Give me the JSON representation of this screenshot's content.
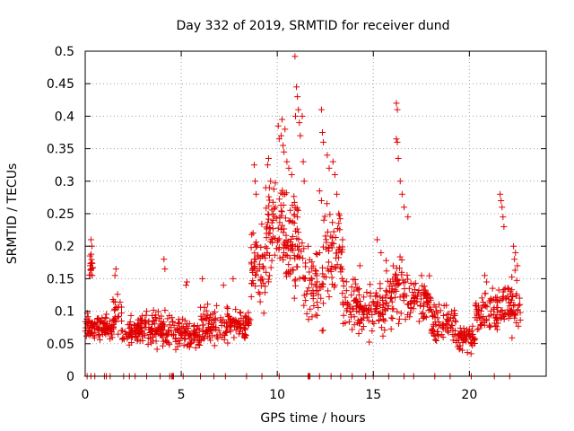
{
  "chart_data": {
    "type": "scatter",
    "title": "Day 332 of 2019, SRMTID for receiver dund",
    "xlabel": "GPS time / hours",
    "ylabel": "SRMTID / TECUs",
    "xlim": [
      0,
      24
    ],
    "ylim": [
      0,
      0.5
    ],
    "xticks": [
      0,
      5,
      10,
      15,
      20
    ],
    "xtick_labels": [
      "0",
      "5",
      "10",
      "15",
      "20"
    ],
    "yticks": [
      0,
      0.05,
      0.1,
      0.15,
      0.2,
      0.25,
      0.3,
      0.35,
      0.4,
      0.45,
      0.5
    ],
    "ytick_labels": [
      "0",
      "0.05",
      "0.1",
      "0.15",
      "0.2",
      "0.25",
      "0.3",
      "0.35",
      "0.4",
      "0.45",
      "0.5"
    ],
    "grid": true,
    "marker": "plus",
    "color": "#e00000",
    "series": [
      {
        "name": "SRMTID",
        "segments": [
          {
            "x0": 0.0,
            "x1": 0.4,
            "base": 0.075,
            "spread": 0.035,
            "count": 30,
            "min": 0.03
          },
          {
            "x0": 0.2,
            "x1": 0.4,
            "base": 0.17,
            "spread": 0.04,
            "count": 14,
            "min": 0.12
          },
          {
            "x0": 0.4,
            "x1": 1.5,
            "base": 0.075,
            "spread": 0.03,
            "count": 70,
            "min": 0.04
          },
          {
            "x0": 1.4,
            "x1": 1.9,
            "base": 0.1,
            "spread": 0.05,
            "count": 24,
            "min": 0.05
          },
          {
            "x0": 1.9,
            "x1": 3.0,
            "base": 0.07,
            "spread": 0.03,
            "count": 70,
            "min": 0.035
          },
          {
            "x0": 3.0,
            "x1": 4.0,
            "base": 0.075,
            "spread": 0.04,
            "count": 65,
            "min": 0.03
          },
          {
            "x0": 4.0,
            "x1": 5.0,
            "base": 0.07,
            "spread": 0.035,
            "count": 60,
            "min": 0.03
          },
          {
            "x0": 5.0,
            "x1": 6.0,
            "base": 0.065,
            "spread": 0.03,
            "count": 60,
            "min": 0.02
          },
          {
            "x0": 6.0,
            "x1": 7.5,
            "base": 0.08,
            "spread": 0.04,
            "count": 85,
            "min": 0.03
          },
          {
            "x0": 7.5,
            "x1": 8.6,
            "base": 0.08,
            "spread": 0.035,
            "count": 70,
            "min": 0.04
          },
          {
            "x0": 8.6,
            "x1": 9.4,
            "base": 0.17,
            "spread": 0.09,
            "count": 55,
            "min": 0.06
          },
          {
            "x0": 9.4,
            "x1": 10.4,
            "base": 0.22,
            "spread": 0.11,
            "count": 75,
            "min": 0.08
          },
          {
            "x0": 10.4,
            "x1": 11.4,
            "base": 0.2,
            "spread": 0.12,
            "count": 75,
            "min": 0.06
          },
          {
            "x0": 11.4,
            "x1": 12.4,
            "base": 0.14,
            "spread": 0.08,
            "count": 60,
            "min": 0.05
          },
          {
            "x0": 12.4,
            "x1": 13.4,
            "base": 0.19,
            "spread": 0.1,
            "count": 60,
            "min": 0.06
          },
          {
            "x0": 13.4,
            "x1": 14.4,
            "base": 0.11,
            "spread": 0.06,
            "count": 60,
            "min": 0.04
          },
          {
            "x0": 14.4,
            "x1": 15.6,
            "base": 0.1,
            "spread": 0.05,
            "count": 70,
            "min": 0.04
          },
          {
            "x0": 15.6,
            "x1": 16.8,
            "base": 0.13,
            "spread": 0.07,
            "count": 70,
            "min": 0.04
          },
          {
            "x0": 16.8,
            "x1": 18.0,
            "base": 0.12,
            "spread": 0.05,
            "count": 70,
            "min": 0.05
          },
          {
            "x0": 18.0,
            "x1": 19.3,
            "base": 0.08,
            "spread": 0.04,
            "count": 75,
            "min": 0.035
          },
          {
            "x0": 19.3,
            "x1": 20.3,
            "base": 0.06,
            "spread": 0.03,
            "count": 60,
            "min": 0.03
          },
          {
            "x0": 20.3,
            "x1": 21.5,
            "base": 0.1,
            "spread": 0.05,
            "count": 70,
            "min": 0.04
          },
          {
            "x0": 21.5,
            "x1": 22.7,
            "base": 0.11,
            "spread": 0.06,
            "count": 70,
            "min": 0.04
          }
        ],
        "peaks": [
          [
            0.3,
            0.21
          ],
          [
            0.35,
            0.2
          ],
          [
            0.25,
            0.185
          ],
          [
            1.6,
            0.165
          ],
          [
            1.55,
            0.155
          ],
          [
            4.1,
            0.18
          ],
          [
            4.15,
            0.165
          ],
          [
            5.3,
            0.145
          ],
          [
            5.25,
            0.14
          ],
          [
            6.1,
            0.15
          ],
          [
            7.2,
            0.14
          ],
          [
            7.7,
            0.15
          ],
          [
            8.8,
            0.325
          ],
          [
            8.85,
            0.3
          ],
          [
            8.9,
            0.28
          ],
          [
            9.4,
            0.29
          ],
          [
            9.5,
            0.325
          ],
          [
            9.55,
            0.335
          ],
          [
            9.65,
            0.3
          ],
          [
            9.9,
            0.26
          ],
          [
            10.05,
            0.385
          ],
          [
            10.1,
            0.365
          ],
          [
            10.2,
            0.37
          ],
          [
            10.25,
            0.395
          ],
          [
            10.3,
            0.355
          ],
          [
            10.35,
            0.345
          ],
          [
            10.4,
            0.38
          ],
          [
            10.5,
            0.33
          ],
          [
            10.6,
            0.32
          ],
          [
            10.75,
            0.31
          ],
          [
            10.95,
            0.4
          ],
          [
            11.0,
            0.445
          ],
          [
            11.05,
            0.43
          ],
          [
            11.1,
            0.41
          ],
          [
            11.15,
            0.39
          ],
          [
            11.2,
            0.37
          ],
          [
            11.3,
            0.4
          ],
          [
            11.35,
            0.33
          ],
          [
            11.4,
            0.3
          ],
          [
            10.92,
            0.492
          ],
          [
            12.3,
            0.41
          ],
          [
            12.35,
            0.375
          ],
          [
            12.4,
            0.36
          ],
          [
            12.6,
            0.34
          ],
          [
            12.7,
            0.32
          ],
          [
            12.2,
            0.285
          ],
          [
            12.3,
            0.27
          ],
          [
            12.9,
            0.33
          ],
          [
            13.0,
            0.31
          ],
          [
            13.1,
            0.28
          ],
          [
            13.2,
            0.25
          ],
          [
            13.4,
            0.21
          ],
          [
            14.3,
            0.17
          ],
          [
            16.2,
            0.42
          ],
          [
            16.25,
            0.41
          ],
          [
            16.2,
            0.365
          ],
          [
            16.25,
            0.36
          ],
          [
            16.3,
            0.335
          ],
          [
            16.4,
            0.3
          ],
          [
            16.5,
            0.28
          ],
          [
            16.6,
            0.26
          ],
          [
            16.8,
            0.245
          ],
          [
            15.2,
            0.21
          ],
          [
            15.4,
            0.19
          ],
          [
            21.6,
            0.28
          ],
          [
            21.65,
            0.27
          ],
          [
            21.7,
            0.26
          ],
          [
            21.75,
            0.245
          ],
          [
            21.8,
            0.23
          ],
          [
            22.3,
            0.2
          ],
          [
            22.4,
            0.19
          ],
          [
            22.35,
            0.18
          ],
          [
            22.5,
            0.17
          ],
          [
            20.8,
            0.155
          ],
          [
            20.9,
            0.145
          ]
        ],
        "zeros": [
          0.1,
          0.3,
          0.5,
          1.0,
          1.1,
          1.3,
          2.0,
          2.3,
          2.6,
          3.2,
          3.9,
          4.4,
          4.5,
          4.55,
          4.6,
          5.1,
          6.0,
          6.7,
          7.3,
          8.4,
          9.2,
          10.1,
          11.6,
          11.65,
          11.7,
          12.2,
          12.8,
          13.3,
          13.9,
          14.6,
          15.0,
          15.8,
          16.6,
          17.1,
          18.2,
          19.0,
          20.1,
          21.3,
          22.1
        ]
      }
    ]
  }
}
